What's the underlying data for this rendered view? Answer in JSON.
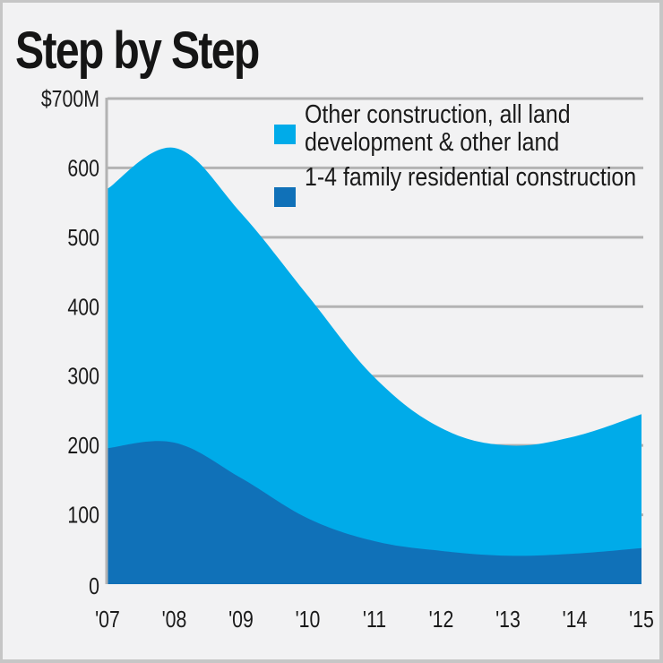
{
  "title": "Step by Step",
  "colors": {
    "other_construction": "#00abe9",
    "residential": "#1071b8",
    "gridline": "#b3b3b3",
    "background": "#f2f2f3",
    "border": "#c6c6c6"
  },
  "legend": {
    "items": [
      {
        "label": "Other construction, all land development & other land",
        "color": "#00abe9"
      },
      {
        "label": "1-4 family residential construction",
        "color": "#1071b8"
      }
    ]
  },
  "axis": {
    "y_ticks": [
      "0",
      "100",
      "200",
      "300",
      "400",
      "500",
      "600",
      "$700M"
    ],
    "x_ticks": [
      "'07",
      "'08",
      "'09",
      "'10",
      "'11",
      "'12",
      "'13",
      "'14",
      "'15"
    ]
  },
  "chart_data": {
    "type": "area",
    "stacked": true,
    "title": "Step by Step",
    "xlabel": "",
    "ylabel": "",
    "units": "$M",
    "ylim": [
      0,
      700
    ],
    "y_ticks": [
      0,
      100,
      200,
      300,
      400,
      500,
      600,
      700
    ],
    "grid": "horizontal, behind areas",
    "legend_position": "top-right, inside plot",
    "x": [
      "'07",
      "'08",
      "'09",
      "'10",
      "'11",
      "'12",
      "'13",
      "'14",
      "'15"
    ],
    "series": [
      {
        "name": "1-4 family residential construction",
        "values": [
          196,
          204,
          153,
          95,
          62,
          48,
          41,
          44,
          52
        ]
      },
      {
        "name": "Other construction, all land development & other land",
        "values": [
          374,
          425,
          382,
          321,
          236,
          177,
          159,
          169,
          193
        ]
      }
    ],
    "totals": [
      570,
      629,
      535,
      416,
      298,
      225,
      200,
      213,
      245
    ]
  }
}
